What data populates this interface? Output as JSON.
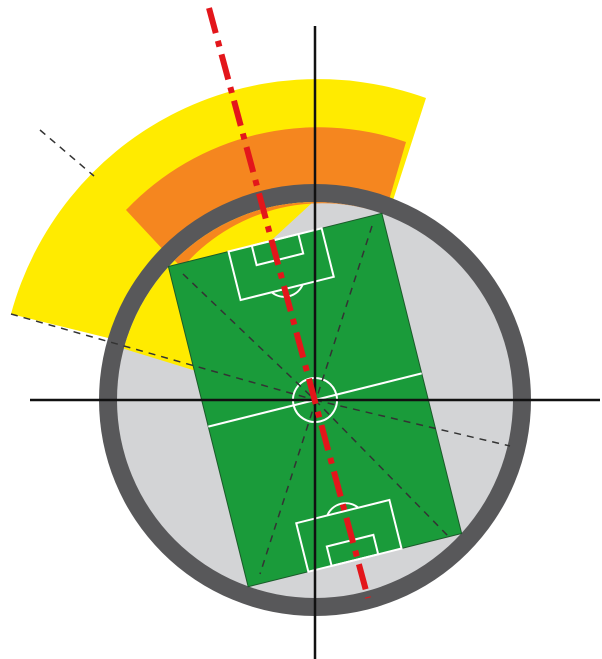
{
  "diagram": {
    "colors": {
      "background": "#ffffff",
      "outer_zone": "#ffeb00",
      "inner_zone": "#f5861f",
      "ring": "#58585a",
      "ring_interior": "#d3d4d6",
      "pitch": "#1a9b3a",
      "pitch_lines": "#ffffff",
      "axes": "#111111",
      "orientation_axis": "#e3161b",
      "guide_lines": "#333333"
    },
    "elements": [
      "yellow-sector",
      "orange-sector",
      "grey-ring",
      "football-pitch",
      "crosshair-axes",
      "red-dash-dot-axis",
      "dashed-guide-lines"
    ]
  }
}
